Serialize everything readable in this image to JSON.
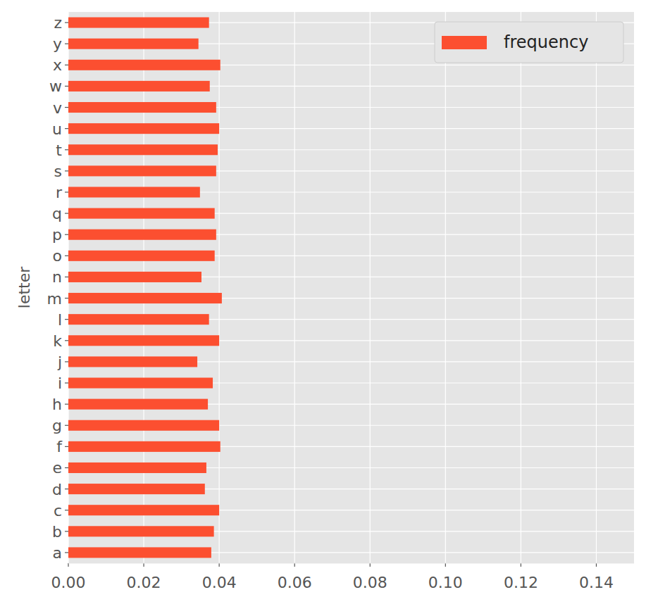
{
  "chart_data": {
    "type": "bar",
    "orientation": "horizontal",
    "ylabel": "letter",
    "categories": [
      "a",
      "b",
      "c",
      "d",
      "e",
      "f",
      "g",
      "h",
      "i",
      "j",
      "k",
      "l",
      "m",
      "n",
      "o",
      "p",
      "q",
      "r",
      "s",
      "t",
      "u",
      "v",
      "w",
      "x",
      "y",
      "z"
    ],
    "series": [
      {
        "name": "frequency",
        "color": "#fc4f30",
        "values": [
          0.0379,
          0.0386,
          0.04,
          0.0362,
          0.0366,
          0.0403,
          0.04,
          0.037,
          0.0383,
          0.0342,
          0.04,
          0.0373,
          0.0407,
          0.0353,
          0.0388,
          0.0392,
          0.0388,
          0.0349,
          0.0392,
          0.0396,
          0.04,
          0.0392,
          0.0375,
          0.0403,
          0.0345,
          0.0373
        ]
      }
    ],
    "xlim": [
      0,
      0.15
    ],
    "xticks": [
      {
        "value": 0,
        "label": "0.00"
      },
      {
        "value": 0.02,
        "label": "0.02"
      },
      {
        "value": 0.04,
        "label": "0.04"
      },
      {
        "value": 0.06,
        "label": "0.06"
      },
      {
        "value": 0.08,
        "label": "0.08"
      },
      {
        "value": 0.1,
        "label": "0.10"
      },
      {
        "value": 0.12,
        "label": "0.12"
      },
      {
        "value": 0.14,
        "label": "0.14"
      }
    ],
    "grid": true,
    "legend": "upper right"
  }
}
